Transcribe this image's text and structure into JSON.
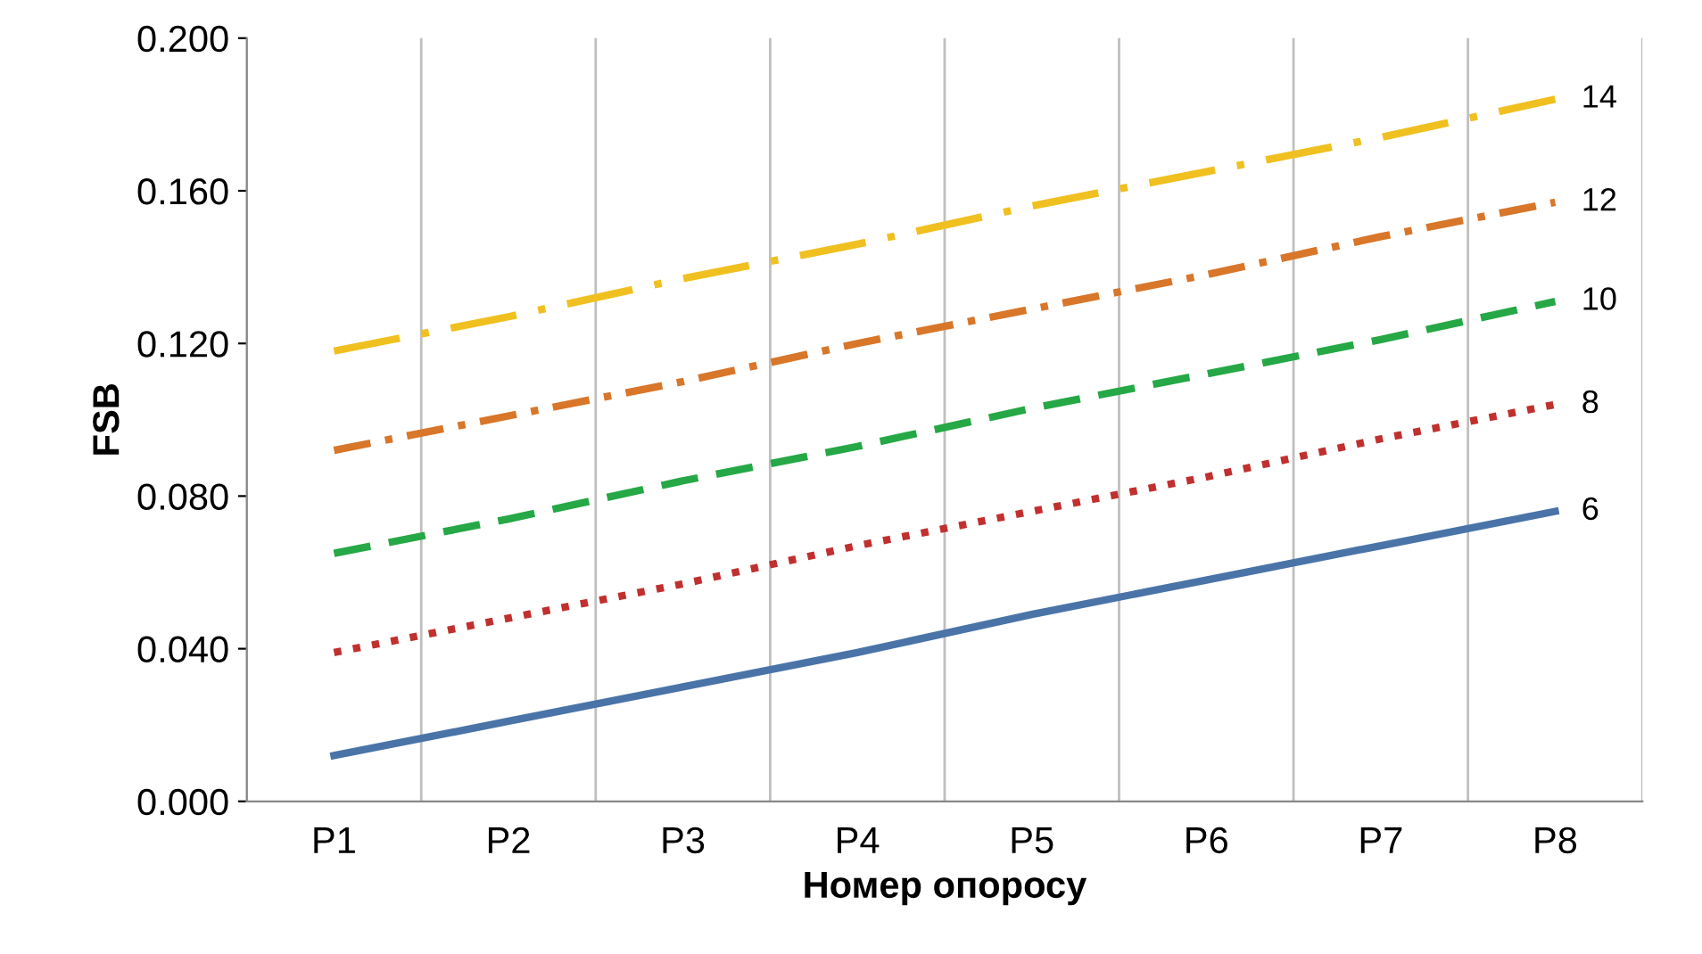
{
  "chart_data": {
    "type": "line",
    "xlabel": "Номер опоросу",
    "ylabel": "FSB",
    "categories": [
      "P1",
      "P2",
      "P3",
      "P4",
      "P5",
      "P6",
      "P7",
      "P8"
    ],
    "series": [
      {
        "name": "6",
        "color": "#4a74a8",
        "line_style": "solid",
        "values": [
          0.012,
          0.021,
          0.03,
          0.039,
          0.049,
          0.058,
          0.067,
          0.076
        ]
      },
      {
        "name": "8",
        "color": "#c0302e",
        "line_style": "dotted",
        "values": [
          0.039,
          0.048,
          0.057,
          0.067,
          0.076,
          0.085,
          0.095,
          0.104
        ]
      },
      {
        "name": "10",
        "color": "#25a845",
        "line_style": "dashed",
        "values": [
          0.065,
          0.074,
          0.084,
          0.093,
          0.103,
          0.112,
          0.121,
          0.131
        ]
      },
      {
        "name": "12",
        "color": "#d8762a",
        "line_style": "dashdot",
        "values": [
          0.092,
          0.101,
          0.11,
          0.12,
          0.129,
          0.138,
          0.148,
          0.157
        ]
      },
      {
        "name": "14",
        "color": "#f0c020",
        "line_style": "longdashdot",
        "values": [
          0.118,
          0.127,
          0.137,
          0.146,
          0.156,
          0.165,
          0.174,
          0.184
        ]
      }
    ],
    "ylim": [
      0,
      0.2
    ],
    "yticks": [
      {
        "value": 0,
        "label": "0.000"
      },
      {
        "value": 0.04,
        "label": "0.040"
      },
      {
        "value": 0.08,
        "label": "0.080"
      },
      {
        "value": 0.12,
        "label": "0.120"
      },
      {
        "value": 0.16,
        "label": "0.160"
      },
      {
        "value": 0.2,
        "label": "0.200"
      }
    ],
    "grid": "x",
    "legend": false,
    "marker": "none"
  }
}
